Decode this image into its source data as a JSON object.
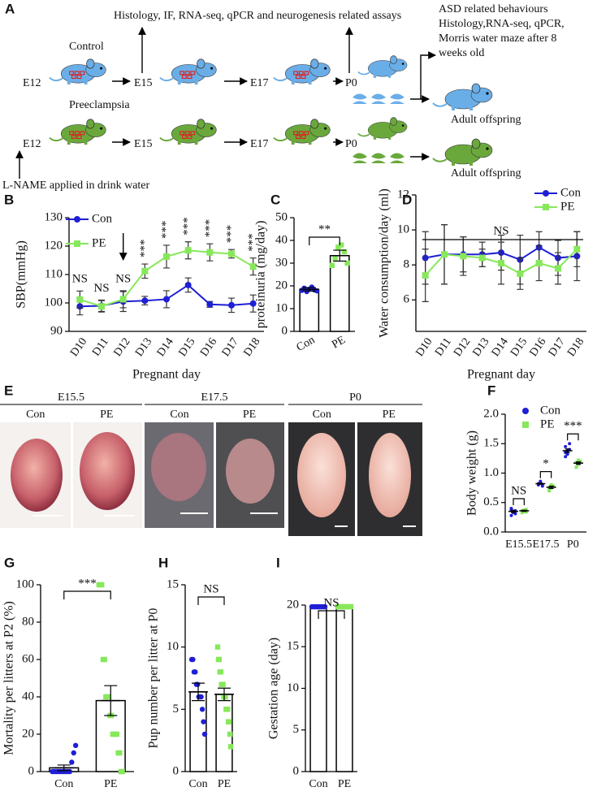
{
  "diagram": {
    "panel": "A",
    "assays_top": "Histology, IF, RNA-seq, qPCR and neurogenesis related assays",
    "control": "Control",
    "preeclampsia": "Preeclampsia",
    "stages_control": [
      "E12",
      "E15",
      "E17",
      "P0"
    ],
    "stages_pe": [
      "E12",
      "E15",
      "E17",
      "P0"
    ],
    "adult_assays": [
      "ASD related behaviours",
      "Histology,RNA-seq, qPCR,",
      "Morris water maze after 8",
      "weeks old"
    ],
    "adult_offspring": [
      "Adult offspring",
      "Adult offspring"
    ],
    "treatment": "L-NAME applied in drink water"
  },
  "photos": {
    "panel": "E",
    "groups": [
      {
        "label": "E15.5",
        "columns": [
          "Con",
          "PE"
        ]
      },
      {
        "label": "E17.5",
        "columns": [
          "Con",
          "PE"
        ]
      },
      {
        "label": "P0",
        "columns": [
          "Con",
          "PE"
        ]
      }
    ]
  },
  "chart_data": [
    {
      "type": "line",
      "panel": "B",
      "ylabel": "SBP(mmHg)",
      "xlabel": "Pregnant day",
      "categories": [
        "D10",
        "D11",
        "D12",
        "D13",
        "D14",
        "D15",
        "D16",
        "D17",
        "D18"
      ],
      "series": [
        {
          "name": "Con",
          "color": "#1f1fd6",
          "values": [
            98.8,
            99,
            100.5,
            100.8,
            101.3,
            106.3,
            99.5,
            99.2,
            99.8
          ],
          "errors": [
            3,
            2,
            3.5,
            1.5,
            3,
            2.5,
            1,
            2.5,
            3
          ]
        },
        {
          "name": "PE",
          "color": "#86e85a",
          "values": [
            101.2,
            98.8,
            101.3,
            111.2,
            116.3,
            118.5,
            117.8,
            117.3,
            112.8
          ],
          "errors": [
            3,
            2,
            3,
            2.5,
            4,
            3,
            3,
            1.5,
            3
          ]
        }
      ],
      "annotations": [
        "NS",
        "NS",
        "NS",
        "***",
        "***",
        "***",
        "***",
        "***",
        "***"
      ],
      "ylim": [
        90,
        130
      ],
      "yticks": [
        90,
        100,
        110,
        120,
        130
      ],
      "legend": "upper left"
    },
    {
      "type": "bar",
      "panel": "C",
      "ylabel": "proteinuria (mg/day)",
      "categories": [
        "Con",
        "PE"
      ],
      "values": [
        18.5,
        33.3
      ],
      "errors": [
        0.8,
        2.4
      ],
      "colors": [
        "#1f1fd6",
        "#86e85a"
      ],
      "points": [
        [
          18,
          19,
          17.5,
          18.5,
          19.5,
          18.2,
          17.8
        ],
        [
          29,
          32,
          37,
          38,
          35,
          30
        ]
      ],
      "significance": "**",
      "ylim": [
        0,
        50
      ],
      "yticks": [
        0,
        10,
        20,
        30,
        40,
        50
      ]
    },
    {
      "type": "line",
      "panel": "D",
      "ylabel": "Water consumption/day (ml)",
      "xlabel": "Pregnant day",
      "categories": [
        "D10",
        "D11",
        "D12",
        "D13",
        "D14",
        "D15",
        "D16",
        "D17",
        "D18"
      ],
      "series": [
        {
          "name": "Con",
          "color": "#1f1fd6",
          "values": [
            8.4,
            8.6,
            8.6,
            8.6,
            8.7,
            8.3,
            9,
            8.4,
            8.5
          ],
          "errors": [
            1.5,
            1.7,
            1,
            0.7,
            1,
            1.4,
            0.9,
            1,
            1.4
          ]
        },
        {
          "name": "PE",
          "color": "#86e85a",
          "values": [
            7.4,
            8.6,
            8.5,
            8.4,
            8.1,
            7.5,
            8.1,
            7.8,
            8.9
          ],
          "errors": [
            1.5,
            1.7,
            1.1,
            0.5,
            1.2,
            0.9,
            1,
            0.9,
            1
          ]
        }
      ],
      "annotation": "NS",
      "ylim": [
        4.2,
        12
      ],
      "yticks": [
        6,
        8,
        10,
        12
      ],
      "legend": "upper right"
    },
    {
      "type": "dot",
      "panel": "F",
      "ylabel": "Body weight (g)",
      "categories": [
        "E15.5",
        "E17.5",
        "P0"
      ],
      "series": [
        {
          "name": "Con",
          "color": "#1f1fd6",
          "values": [
            0.35,
            0.82,
            1.38
          ],
          "errors": [
            0.02,
            0.01,
            0.03
          ],
          "points": [
            [
              0.28,
              0.33,
              0.36,
              0.38,
              0.35,
              0.31,
              0.4
            ],
            [
              0.8,
              0.84,
              0.78,
              0.82,
              0.86,
              0.8
            ],
            [
              1.28,
              1.32,
              1.4,
              1.45,
              1.38,
              1.5,
              1.35
            ]
          ]
        },
        {
          "name": "PE",
          "color": "#86e85a",
          "values": [
            0.36,
            0.76,
            1.17
          ],
          "errors": [
            0.01,
            0.02,
            0.02
          ],
          "points": [
            [
              0.33,
              0.35,
              0.38,
              0.36,
              0.37,
              0.34
            ],
            [
              0.7,
              0.75,
              0.78,
              0.73,
              0.8
            ],
            [
              1.1,
              1.15,
              1.2,
              1.18,
              1.22
            ]
          ]
        }
      ],
      "significance": [
        "NS",
        "*",
        "***"
      ],
      "ylim": [
        0,
        2
      ],
      "yticks": [
        {
          "value": 0,
          "label": "0.0"
        },
        0.5,
        {
          "value": 1,
          "label": "1.0"
        },
        1.5,
        {
          "value": 2,
          "label": "2.0"
        }
      ],
      "legend": "upper center"
    },
    {
      "type": "bar",
      "panel": "G",
      "ylabel": "Mortality per litters at P2 (%)",
      "categories": [
        "Con",
        "PE"
      ],
      "values": [
        2,
        38
      ],
      "errors": [
        1.5,
        8
      ],
      "colors": [
        "#1f1fd6",
        "#86e85a"
      ],
      "points": [
        [
          0,
          0,
          0,
          0,
          0,
          0,
          0,
          0,
          0,
          0,
          5,
          10,
          14
        ],
        [
          100,
          100,
          100,
          60,
          60,
          40,
          40,
          40,
          30,
          30,
          20,
          20,
          20,
          20,
          10,
          10,
          0,
          0
        ]
      ],
      "significance": "***",
      "ylim": [
        0,
        100
      ],
      "yticks": [
        0,
        20,
        40,
        60,
        80,
        100
      ]
    },
    {
      "type": "bar",
      "panel": "H",
      "ylabel": "Pup number per litter at P0",
      "categories": [
        "Con",
        "PE"
      ],
      "values": [
        6.4,
        6.2
      ],
      "errors": [
        0.7,
        0.5
      ],
      "colors": [
        "#1f1fd6",
        "#86e85a"
      ],
      "points": [
        [
          9,
          9,
          8,
          8,
          7,
          7,
          6,
          6,
          6,
          5,
          4,
          3
        ],
        [
          10,
          9,
          9,
          8,
          8,
          7,
          7,
          7,
          6,
          6,
          6,
          5,
          5,
          5,
          4,
          4,
          3,
          2
        ]
      ],
      "significance": "NS",
      "ylim": [
        0,
        15
      ],
      "yticks": [
        0,
        5,
        10,
        15
      ]
    },
    {
      "type": "bar",
      "panel": "I",
      "ylabel": "Gestation age (day)",
      "categories": [
        "Con",
        "PE"
      ],
      "values": [
        19.8,
        19.8
      ],
      "colors": [
        "#1f1fd6",
        "#86e85a"
      ],
      "points": [
        [
          19.8,
          19.8,
          19.8,
          19.8,
          19.8,
          19.8,
          19.8,
          19.8,
          19.8,
          19.8
        ],
        [
          19.8,
          19.8,
          19.8,
          19.8,
          19.8,
          19.8,
          19.8,
          19.8,
          19.8,
          19.8
        ]
      ],
      "significance": "NS",
      "ylim": [
        0,
        20
      ],
      "yticks": [
        0,
        5,
        10,
        15,
        20
      ]
    }
  ]
}
